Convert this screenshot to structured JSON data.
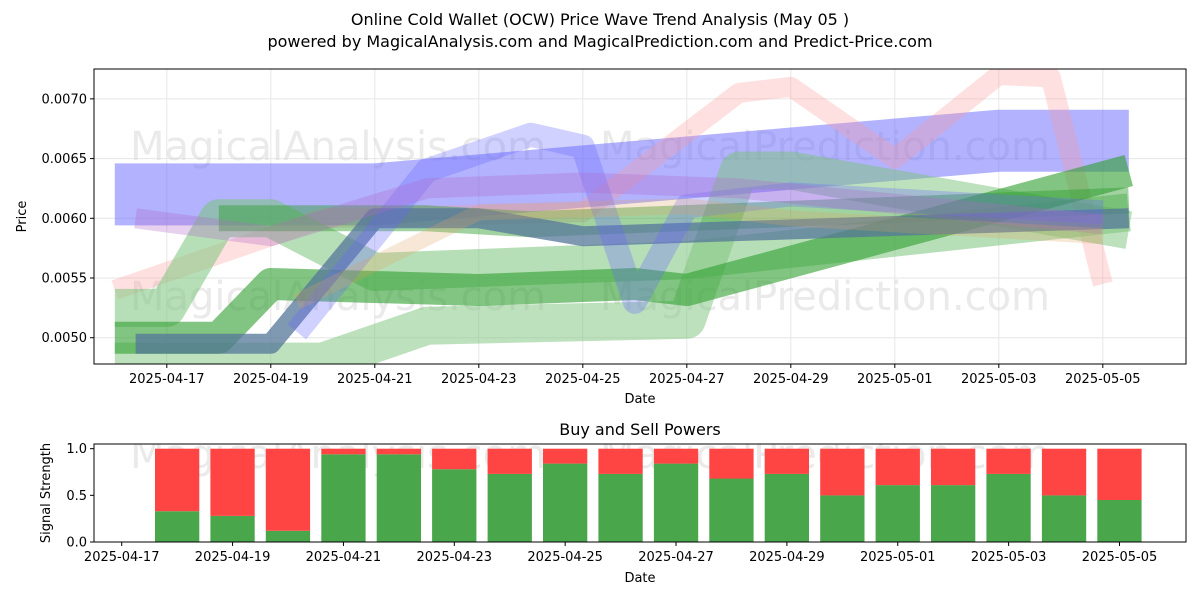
{
  "header": {
    "title": "Online Cold Wallet (OCW) Price Wave Trend Analysis (May 05 )",
    "subtitle": "powered by MagicalAnalysis.com and MagicalPrediction.com and Predict-Price.com"
  },
  "watermarks": [
    "MagicalAnalysis.com",
    "MagicalPrediction.com"
  ],
  "colors": {
    "blue": "#6666ff",
    "green": "#2e9e2e",
    "green_light": "#7cc47c",
    "red": "#ff9999",
    "purple": "#b068c8",
    "orange": "#e0a060",
    "slate": "#557799",
    "buy": "#4aa64a",
    "sell": "#ff4444"
  },
  "chart_data": [
    {
      "type": "line",
      "title": "",
      "xlabel": "Date",
      "ylabel": "Price",
      "xlim": [
        "2025-04-15.6",
        "2025-05-06.6"
      ],
      "ylim": [
        0.00478,
        0.00725
      ],
      "x_ticks": [
        "2025-04-17",
        "2025-04-19",
        "2025-04-21",
        "2025-04-23",
        "2025-04-25",
        "2025-04-27",
        "2025-04-29",
        "2025-05-01",
        "2025-05-03",
        "2025-05-05"
      ],
      "y_ticks": [
        "0.0050",
        "0.0055",
        "0.0060",
        "0.0065",
        "0.0070"
      ],
      "grid": true,
      "series": [
        {
          "color": "blue",
          "opacity": 0.5,
          "width": 62,
          "points": [
            [
              "2025-04-16",
              0.0062
            ],
            [
              "2025-04-21",
              0.0062
            ],
            [
              "2025-05-03",
              0.00665
            ],
            [
              "2025-05-05.5",
              0.00665
            ]
          ]
        },
        {
          "color": "red",
          "opacity": 0.3,
          "width": 20,
          "points": [
            [
              "2025-04-16",
              0.0054
            ],
            [
              "2025-04-20",
              0.006
            ],
            [
              "2025-04-25",
              0.00605
            ],
            [
              "2025-04-28",
              0.00705
            ],
            [
              "2025-04-29",
              0.0071
            ],
            [
              "2025-05-01",
              0.0065
            ],
            [
              "2025-05-03",
              0.0072
            ],
            [
              "2025-05-04",
              0.00718
            ],
            [
              "2025-05-05",
              0.00545
            ]
          ]
        },
        {
          "color": "green_light",
          "opacity": 0.55,
          "width": 38,
          "points": [
            [
              "2025-04-16",
              0.00525
            ],
            [
              "2025-04-17",
              0.00525
            ],
            [
              "2025-04-18",
              0.006
            ],
            [
              "2025-04-19",
              0.006
            ],
            [
              "2025-04-21",
              0.00555
            ],
            [
              "2025-04-27",
              0.00565
            ],
            [
              "2025-05-05.5",
              0.00605
            ]
          ]
        },
        {
          "color": "green_light",
          "opacity": 0.5,
          "width": 38,
          "points": [
            [
              "2025-04-16",
              0.0048
            ],
            [
              "2025-04-20",
              0.0048
            ],
            [
              "2025-04-22",
              0.0051
            ],
            [
              "2025-04-27",
              0.00515
            ],
            [
              "2025-04-28",
              0.0064
            ],
            [
              "2025-04-29",
              0.0064
            ],
            [
              "2025-05-05.5",
              0.0059
            ]
          ]
        },
        {
          "color": "green",
          "opacity": 0.6,
          "width": 32,
          "points": [
            [
              "2025-04-16",
              0.005
            ],
            [
              "2025-04-18",
              0.005
            ],
            [
              "2025-04-19",
              0.00545
            ],
            [
              "2025-04-23",
              0.0054
            ],
            [
              "2025-04-26",
              0.00545
            ],
            [
              "2025-04-27",
              0.0054
            ],
            [
              "2025-05-05.5",
              0.0064
            ]
          ]
        },
        {
          "color": "green",
          "opacity": 0.45,
          "width": 26,
          "points": [
            [
              "2025-04-18",
              0.006
            ],
            [
              "2025-04-22",
              0.006
            ],
            [
              "2025-04-24",
              0.00595
            ],
            [
              "2025-05-05.5",
              0.00615
            ]
          ]
        },
        {
          "color": "slate",
          "opacity": 0.75,
          "width": 20,
          "points": [
            [
              "2025-04-16.4",
              0.00495
            ],
            [
              "2025-04-19",
              0.00495
            ],
            [
              "2025-04-21",
              0.006
            ],
            [
              "2025-04-23",
              0.006
            ],
            [
              "2025-04-25",
              0.00585
            ],
            [
              "2025-05-05.5",
              0.006
            ]
          ]
        },
        {
          "color": "blue",
          "opacity": 0.3,
          "width": 24,
          "points": [
            [
              "2025-04-19.5",
              0.00505
            ],
            [
              "2025-04-22",
              0.0064
            ],
            [
              "2025-04-24",
              0.0067
            ],
            [
              "2025-04-25",
              0.0066
            ],
            [
              "2025-04-26",
              0.0053
            ],
            [
              "2025-04-27",
              0.0061
            ],
            [
              "2025-04-29",
              0.0062
            ],
            [
              "2025-05-05",
              0.00605
            ]
          ]
        },
        {
          "color": "purple",
          "opacity": 0.3,
          "width": 20,
          "points": [
            [
              "2025-04-16.4",
              0.006
            ],
            [
              "2025-04-19",
              0.00585
            ],
            [
              "2025-04-22",
              0.00625
            ],
            [
              "2025-04-25",
              0.0063
            ],
            [
              "2025-04-28",
              0.00625
            ],
            [
              "2025-05-05",
              0.00595
            ]
          ]
        },
        {
          "color": "orange",
          "opacity": 0.25,
          "width": 16,
          "points": [
            [
              "2025-04-19.5",
              0.0053
            ],
            [
              "2025-04-23",
              0.00605
            ],
            [
              "2025-04-27",
              0.0061
            ],
            [
              "2025-04-29",
              0.006
            ],
            [
              "2025-05-05",
              0.00585
            ]
          ]
        }
      ]
    },
    {
      "type": "bar",
      "stacked": true,
      "title": "Buy and Sell Powers",
      "xlabel": "Date",
      "ylabel": "Signal Strength",
      "ylim": [
        0,
        1.05
      ],
      "y_ticks": [
        "0.0",
        "0.5",
        "1.0"
      ],
      "x_ticks": [
        "2025-04-17",
        "2025-04-19",
        "2025-04-21",
        "2025-04-23",
        "2025-04-25",
        "2025-04-27",
        "2025-04-29",
        "2025-05-01",
        "2025-05-03",
        "2025-05-05"
      ],
      "categories": [
        "2025-04-18",
        "2025-04-19",
        "2025-04-20",
        "2025-04-21",
        "2025-04-22",
        "2025-04-23",
        "2025-04-24",
        "2025-04-25",
        "2025-04-26",
        "2025-04-27",
        "2025-04-28",
        "2025-04-29",
        "2025-04-30",
        "2025-05-01",
        "2025-05-02",
        "2025-05-03",
        "2025-05-04",
        "2025-05-05"
      ],
      "series": [
        {
          "values": [
            0.33,
            0.28,
            0.12,
            0.94,
            0.94,
            0.78,
            0.73,
            0.84,
            0.73,
            0.84,
            0.68,
            0.73,
            0.5,
            0.61,
            0.61,
            0.73,
            0.5,
            0.45
          ]
        },
        {
          "values": [
            0.67,
            0.72,
            0.88,
            0.06,
            0.06,
            0.22,
            0.27,
            0.16,
            0.27,
            0.16,
            0.32,
            0.27,
            0.5,
            0.39,
            0.39,
            0.27,
            0.5,
            0.55
          ]
        }
      ]
    }
  ]
}
